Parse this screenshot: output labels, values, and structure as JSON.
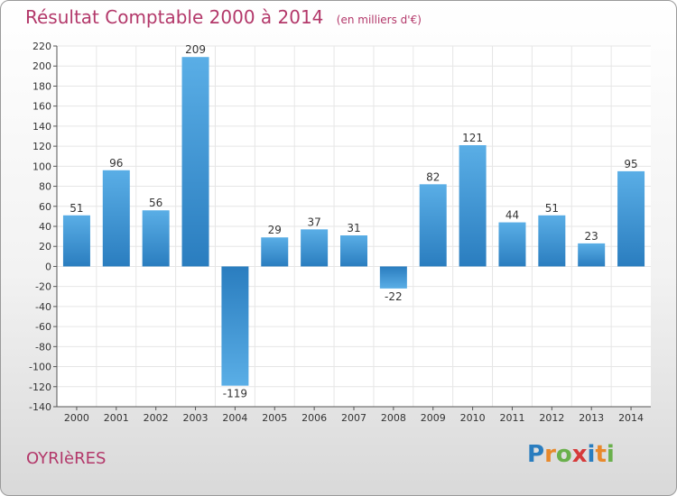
{
  "chart_data": {
    "type": "bar",
    "title": "Résultat Comptable 2000 à 2014",
    "unit_label": "(en milliers d'€)",
    "categories": [
      "2000",
      "2001",
      "2002",
      "2003",
      "2004",
      "2005",
      "2006",
      "2007",
      "2008",
      "2009",
      "2010",
      "2011",
      "2012",
      "2013",
      "2014"
    ],
    "values": [
      51,
      96,
      56,
      209,
      -119,
      29,
      37,
      31,
      -22,
      82,
      121,
      44,
      51,
      23,
      95
    ],
    "ylim": [
      -140,
      220
    ],
    "ytick_step": 20,
    "grid": true,
    "xlabel": "",
    "ylabel": ""
  },
  "footer": {
    "city": "OYRIèRES",
    "brand": "Proxiti"
  },
  "colors": {
    "bar_light": "#5aaee6",
    "bar_dark": "#2a7dbf",
    "title": "#b3386a",
    "grid": "#e6e6e6"
  }
}
